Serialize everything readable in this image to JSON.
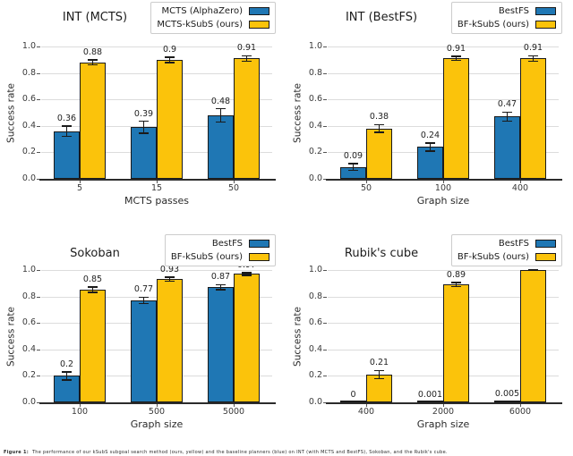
{
  "figure": {
    "caption_label": "Figure 1:",
    "caption_text": "The performance of our kSubS subgoal search method (ours, yellow) and the baseline planners (blue) on INT (with MCTS and BestFS), Sokoban, and the Rubik's cube.",
    "ylabel": "Success rate",
    "colors": {
      "baseline_blue": "#1F77B4",
      "ours_yellow": "#FBC30B",
      "bar_edge": "#1A1A1A",
      "grid": "#DCDCDC",
      "axis": "#2B2B2B",
      "background": "#FFFFFF"
    }
  },
  "chart_data": [
    {
      "type": "bar",
      "title": "INT (MCTS)",
      "xlabel": "MCTS passes",
      "ylabel": "Success rate",
      "categories": [
        "5",
        "15",
        "50"
      ],
      "ylim": [
        0.0,
        1.05
      ],
      "yticks": [
        0.0,
        0.2,
        0.4,
        0.6,
        0.8,
        1.0
      ],
      "ytick_labels": [
        "0.0",
        "0.2",
        "0.4",
        "0.6",
        "0.8",
        "1.0"
      ],
      "grid": true,
      "legend_position": "upper right",
      "series": [
        {
          "name": "MCTS (AlphaZero)",
          "color": "#1F77B4",
          "values": [
            0.36,
            0.39,
            0.48
          ],
          "labels": [
            "0.36",
            "0.39",
            "0.48"
          ],
          "errors": [
            0.04,
            0.045,
            0.05
          ]
        },
        {
          "name": "MCTS-kSubS (ours)",
          "color": "#FBC30B",
          "values": [
            0.88,
            0.9,
            0.91
          ],
          "labels": [
            "0.88",
            "0.9",
            "0.91"
          ],
          "errors": [
            0.02,
            0.02,
            0.02
          ]
        }
      ]
    },
    {
      "type": "bar",
      "title": "INT (BestFS)",
      "xlabel": "Graph size",
      "ylabel": "Success rate",
      "categories": [
        "50",
        "100",
        "400"
      ],
      "ylim": [
        0.0,
        1.05
      ],
      "yticks": [
        0.0,
        0.2,
        0.4,
        0.6,
        0.8,
        1.0
      ],
      "ytick_labels": [
        "0.0",
        "0.2",
        "0.4",
        "0.6",
        "0.8",
        "1.0"
      ],
      "grid": true,
      "legend_position": "upper right",
      "series": [
        {
          "name": "BestFS",
          "color": "#1F77B4",
          "values": [
            0.09,
            0.24,
            0.47
          ],
          "labels": [
            "0.09",
            "0.24",
            "0.47"
          ],
          "errors": [
            0.025,
            0.03,
            0.035
          ]
        },
        {
          "name": "BF-kSubS (ours)",
          "color": "#FBC30B",
          "values": [
            0.38,
            0.91,
            0.91
          ],
          "labels": [
            "0.38",
            "0.91",
            "0.91"
          ],
          "errors": [
            0.03,
            0.015,
            0.02
          ]
        }
      ]
    },
    {
      "type": "bar",
      "title": "Sokoban",
      "xlabel": "Graph size",
      "ylabel": "Success rate",
      "categories": [
        "100",
        "500",
        "5000"
      ],
      "ylim": [
        0.0,
        1.05
      ],
      "yticks": [
        0.0,
        0.2,
        0.4,
        0.6,
        0.8,
        1.0
      ],
      "ytick_labels": [
        "0.0",
        "0.2",
        "0.4",
        "0.6",
        "0.8",
        "1.0"
      ],
      "grid": true,
      "legend_position": "upper right",
      "series": [
        {
          "name": "BestFS",
          "color": "#1F77B4",
          "values": [
            0.2,
            0.77,
            0.87
          ],
          "labels": [
            "0.2",
            "0.77",
            "0.87"
          ],
          "errors": [
            0.03,
            0.025,
            0.02
          ]
        },
        {
          "name": "BF-kSubS (ours)",
          "color": "#FBC30B",
          "values": [
            0.85,
            0.93,
            0.97
          ],
          "labels": [
            "0.85",
            "0.93",
            "0.97"
          ],
          "errors": [
            0.02,
            0.015,
            0.01
          ]
        }
      ]
    },
    {
      "type": "bar",
      "title": "Rubik's cube",
      "xlabel": "Graph size",
      "ylabel": "Success rate",
      "categories": [
        "400",
        "2000",
        "6000"
      ],
      "ylim": [
        0.0,
        1.05
      ],
      "yticks": [
        0.0,
        0.2,
        0.4,
        0.6,
        0.8,
        1.0
      ],
      "ytick_labels": [
        "0.0",
        "0.2",
        "0.4",
        "0.6",
        "0.8",
        "1.0"
      ],
      "grid": true,
      "legend_position": "upper right",
      "series": [
        {
          "name": "BestFS",
          "color": "#1F77B4",
          "values": [
            0.0,
            0.001,
            0.005
          ],
          "labels": [
            "0",
            "0.001",
            "0.005"
          ],
          "errors": [
            0.0,
            0.002,
            0.004
          ]
        },
        {
          "name": "BF-kSubS (ours)",
          "color": "#FBC30B",
          "values": [
            0.21,
            0.89,
            0.999
          ],
          "labels": [
            "0.21",
            "0.89",
            "0.999"
          ],
          "errors": [
            0.03,
            0.015,
            0.002
          ]
        }
      ]
    }
  ]
}
